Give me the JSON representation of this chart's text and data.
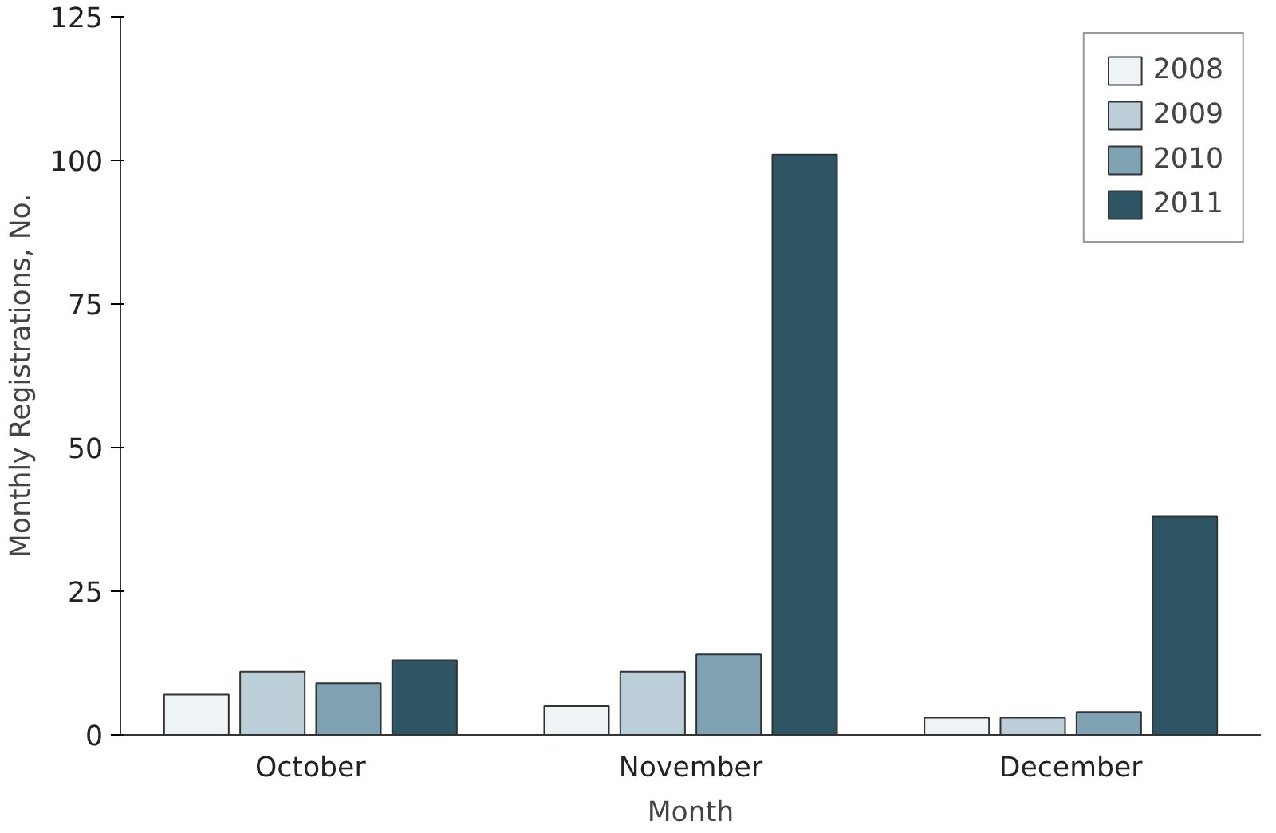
{
  "chart_data": {
    "type": "bar",
    "xlabel": "Month",
    "ylabel": "Monthly Registrations, No.",
    "categories": [
      "October",
      "November",
      "December"
    ],
    "series": [
      {
        "name": "2008",
        "color": "#eef3f6",
        "values": [
          7,
          5,
          3
        ]
      },
      {
        "name": "2009",
        "color": "#bccfd8",
        "values": [
          11,
          11,
          3
        ]
      },
      {
        "name": "2010",
        "color": "#7fa3b2",
        "values": [
          9,
          14,
          4
        ]
      },
      {
        "name": "2011",
        "color": "#2e5564",
        "values": [
          13,
          101,
          38
        ]
      }
    ],
    "ylim": [
      0,
      125
    ],
    "yticks": [
      0,
      25,
      50,
      75,
      100,
      125
    ],
    "grid": false,
    "legend": "top right"
  }
}
